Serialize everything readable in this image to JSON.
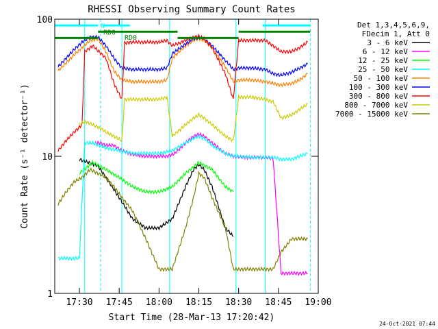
{
  "chart_data": {
    "type": "line",
    "title": "RHESSI Observing Summary Count Rates",
    "xlabel": "Start Time (28-Mar-13 17:20:42)",
    "ylabel": "Count Rate (s⁻¹ detector⁻¹)",
    "yscale": "log",
    "ylim": [
      1,
      100
    ],
    "xlim": [
      "17:20:42",
      "19:00:00"
    ],
    "x_ticks": [
      "17:30",
      "17:45",
      "18:00",
      "18:15",
      "18:30",
      "18:45",
      "19:00"
    ],
    "y_ticks": [
      "1",
      "10",
      "100"
    ],
    "grid": false,
    "background": "#ffffff",
    "legend": {
      "placement": "top-right",
      "header": [
        "Det 1,3,4,5,6,9,",
        "FDecim 1, Att 0"
      ]
    },
    "series": [
      {
        "name": "3 - 6 keV",
        "color": "#000000",
        "x": [
          "17:30",
          "17:37",
          "17:40",
          "17:45",
          "17:50",
          "17:55",
          "18:00",
          "18:05",
          "18:10",
          "18:13",
          "18:15",
          "18:17",
          "18:20",
          "18:25",
          "18:28"
        ],
        "y": [
          9.5,
          8.5,
          7,
          5,
          3.5,
          3,
          3,
          3.5,
          6,
          8,
          8.7,
          8,
          6,
          3,
          2.6
        ]
      },
      {
        "name": "6 - 12 keV",
        "color": "#ff00ff",
        "x": [
          "17:36",
          "17:38",
          "17:40",
          "17:43",
          "17:46",
          "17:50",
          "17:55",
          "18:00",
          "18:03",
          "18:06",
          "18:10",
          "18:13",
          "18:15",
          "18:17",
          "18:20",
          "18:25",
          "18:28",
          "18:32",
          "18:35",
          "18:40",
          "18:43",
          "18:46",
          "18:50",
          "18:53",
          "18:56"
        ],
        "y": [
          12.5,
          12.5,
          12,
          12,
          11,
          10.3,
          10,
          10,
          10,
          10.5,
          12.5,
          14,
          14.5,
          14,
          12.5,
          10.5,
          10,
          9.8,
          9.8,
          9.8,
          9.6,
          1.4,
          1.4,
          1.4,
          1.4
        ]
      },
      {
        "name": "12 - 25 keV",
        "color": "#00ff00",
        "x": [
          "17:30",
          "17:35",
          "17:40",
          "17:45",
          "17:50",
          "17:55",
          "18:00",
          "18:05",
          "18:10",
          "18:15",
          "18:20",
          "18:25",
          "18:28"
        ],
        "y": [
          7.5,
          9,
          8,
          7,
          6,
          5.5,
          5.5,
          6,
          7.5,
          9,
          8,
          6,
          5.5
        ]
      },
      {
        "name": "25 - 50 keV",
        "color": "#00ffff",
        "x": [
          "17:22",
          "17:25",
          "17:28",
          "17:30",
          "17:32",
          "17:35",
          "17:40",
          "17:45",
          "17:50",
          "17:55",
          "18:00",
          "18:05",
          "18:10",
          "18:13",
          "18:15",
          "18:17",
          "18:20",
          "18:25",
          "18:28",
          "18:30",
          "18:35",
          "18:40",
          "18:43",
          "18:46",
          "18:50",
          "18:53",
          "18:56"
        ],
        "y": [
          1.8,
          1.8,
          1.8,
          1.8,
          12.5,
          12.5,
          11.5,
          11,
          10.5,
          10.5,
          10.5,
          11,
          12.5,
          13.5,
          14,
          13.5,
          12,
          10.5,
          10,
          10,
          9.8,
          9.8,
          9.8,
          9.5,
          9.5,
          10,
          10.5
        ]
      },
      {
        "name": "50 - 100 keV",
        "color": "#ff8000",
        "x": [
          "17:22",
          "17:25",
          "17:28",
          "17:31",
          "17:34",
          "17:37",
          "17:40",
          "17:43",
          "17:46",
          "17:50",
          "17:55",
          "18:00",
          "18:03",
          "18:05",
          "18:10",
          "18:13",
          "18:15",
          "18:17",
          "18:20",
          "18:25",
          "18:28",
          "18:30",
          "18:35",
          "18:40",
          "18:43",
          "18:46",
          "18:50",
          "18:53",
          "18:56"
        ],
        "y": [
          42,
          48,
          55,
          62,
          70,
          72,
          58,
          42,
          36,
          35,
          35,
          35,
          36,
          52,
          64,
          70,
          72,
          70,
          62,
          45,
          35,
          36,
          36,
          35,
          34,
          33,
          34,
          36,
          40
        ]
      },
      {
        "name": "100 - 300 keV",
        "color": "#0000ff",
        "x": [
          "17:22",
          "17:25",
          "17:28",
          "17:31",
          "17:34",
          "17:37",
          "17:40",
          "17:43",
          "17:46",
          "17:50",
          "17:55",
          "18:00",
          "18:03",
          "18:05",
          "18:10",
          "18:13",
          "18:15",
          "18:17",
          "18:20",
          "18:25",
          "18:28",
          "18:30",
          "18:35",
          "18:40",
          "18:43",
          "18:46",
          "18:50",
          "18:53",
          "18:56"
        ],
        "y": [
          45,
          52,
          60,
          68,
          74,
          74,
          64,
          52,
          44,
          43,
          43,
          43,
          44,
          56,
          66,
          72,
          74,
          72,
          64,
          50,
          43,
          44,
          44,
          43,
          40,
          39,
          41,
          44,
          47
        ]
      },
      {
        "name": "300 - 800 keV",
        "color": "#ff0000",
        "x": [
          "17:22",
          "17:25",
          "17:28",
          "17:31",
          "17:32",
          "17:35",
          "17:40",
          "17:43",
          "17:46",
          "17:47",
          "17:50",
          "17:55",
          "18:00",
          "18:03",
          "18:05",
          "18:10",
          "18:13",
          "18:15",
          "18:17",
          "18:20",
          "18:25",
          "18:28",
          "18:30",
          "18:35",
          "18:40",
          "18:43",
          "18:46",
          "18:50",
          "18:53",
          "18:56"
        ],
        "y": [
          11,
          13,
          15,
          17,
          58,
          64,
          52,
          34,
          26,
          67,
          68,
          68,
          68,
          70,
          64,
          70,
          74,
          75,
          72,
          62,
          40,
          26,
          70,
          70,
          70,
          64,
          58,
          58,
          62,
          68
        ]
      },
      {
        "name": "800 - 7000 keV",
        "color": "#cccc00",
        "x": [
          "17:30",
          "17:32",
          "17:35",
          "17:38",
          "17:40",
          "17:43",
          "17:46",
          "17:47",
          "17:50",
          "17:55",
          "18:00",
          "18:03",
          "18:05",
          "18:10",
          "18:13",
          "18:15",
          "18:17",
          "18:20",
          "18:25",
          "18:28",
          "18:30",
          "18:35",
          "18:40",
          "18:43",
          "18:46",
          "18:50",
          "18:53",
          "18:56"
        ],
        "y": [
          17,
          18,
          17,
          16,
          15,
          14,
          13,
          26,
          26,
          26,
          26,
          27,
          14,
          17,
          19,
          20,
          19,
          17,
          14,
          13,
          27,
          27,
          26,
          25,
          19,
          20,
          22,
          24
        ]
      },
      {
        "name": "7000 - 15000 keV",
        "color": "#808000",
        "x": [
          "17:22",
          "17:25",
          "17:28",
          "17:31",
          "17:34",
          "17:37",
          "17:40",
          "17:43",
          "17:46",
          "17:50",
          "17:55",
          "18:00",
          "18:03",
          "18:05",
          "18:10",
          "18:13",
          "18:15",
          "18:17",
          "18:20",
          "18:25",
          "18:28",
          "18:30",
          "18:35",
          "18:40",
          "18:43",
          "18:46",
          "18:50",
          "18:53",
          "18:56"
        ],
        "y": [
          4.5,
          5.5,
          6.5,
          7,
          8,
          7.5,
          7,
          6,
          5,
          4,
          2.5,
          1.5,
          1.5,
          1.5,
          3,
          5,
          7.5,
          7,
          5,
          3,
          1.5,
          1.5,
          1.5,
          1.5,
          1.5,
          2,
          2.5,
          2.5,
          2.5
        ]
      }
    ],
    "annotations": [
      {
        "text": "N",
        "x": "17:38",
        "y": 90,
        "color": "#00ffff"
      },
      {
        "text": "RD0",
        "x": "17:39",
        "y": 81,
        "color": "#008000"
      },
      {
        "text": "RD0",
        "x": "17:47",
        "y": 74,
        "color": "#008000"
      }
    ],
    "state_bars": [
      {
        "x": [
          "17:20:42",
          "17:37"
        ],
        "y": 90,
        "color": "#00ffff"
      },
      {
        "x": [
          "17:39",
          "17:49"
        ],
        "y": 90,
        "color": "#00ffff"
      },
      {
        "x": [
          "18:39",
          "18:57"
        ],
        "y": 90,
        "color": "#00ffff"
      },
      {
        "x": [
          "17:20:42",
          "17:37"
        ],
        "y": 73,
        "color": "#008000"
      },
      {
        "x": [
          "17:37",
          "17:47"
        ],
        "y": 81,
        "color": "#008000"
      },
      {
        "x": [
          "17:47",
          "18:07"
        ],
        "y": 81,
        "color": "#008000"
      },
      {
        "x": [
          "18:07",
          "18:30"
        ],
        "y": 73,
        "color": "#008000"
      },
      {
        "x": [
          "18:30",
          "18:57"
        ],
        "y": 81,
        "color": "#008000"
      }
    ],
    "vlines": [
      {
        "x": "17:32",
        "color": "#00ffff",
        "dash": false
      },
      {
        "x": "17:38",
        "color": "#00ffff",
        "dash": true
      },
      {
        "x": "17:46",
        "color": "#00ffff",
        "dash": false
      },
      {
        "x": "18:04",
        "color": "#00ffff",
        "dash": false
      },
      {
        "x": "18:29",
        "color": "#00ffff",
        "dash": false
      },
      {
        "x": "18:40",
        "color": "#00ffff",
        "dash": false
      },
      {
        "x": "18:57",
        "color": "#00ffff",
        "dash": true
      }
    ]
  },
  "footer": {
    "timestamp": "24-Oct-2021 07:44"
  }
}
